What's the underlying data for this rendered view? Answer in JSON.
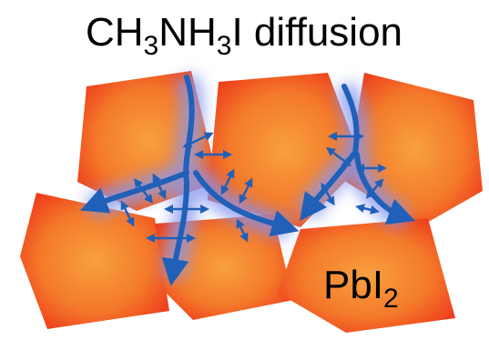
{
  "title": {
    "parts": [
      "CH",
      "3",
      "NH",
      "3",
      "I diffusion"
    ]
  },
  "label": {
    "parts": [
      "PbI",
      "2"
    ]
  }
}
